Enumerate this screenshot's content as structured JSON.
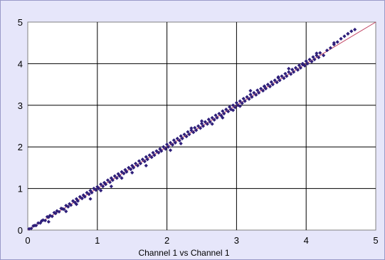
{
  "chart_data": {
    "type": "scatter",
    "title": "",
    "xlabel": "Channel 1 vs Channel 1",
    "ylabel": "",
    "xlim": [
      0,
      5
    ],
    "ylim": [
      0,
      5
    ],
    "x_ticks": [
      "0",
      "1",
      "2",
      "3",
      "4",
      "5"
    ],
    "y_ticks": [
      "0",
      "1",
      "2",
      "3",
      "4",
      "5"
    ],
    "grid": true,
    "legend": "none",
    "colors": {
      "background": "#e6e6fa",
      "plot_area": "#ffffff",
      "grid": "#000000",
      "points": "#2e1f7a",
      "trend_line": "#c04060"
    },
    "trend_line": {
      "x": [
        0,
        5
      ],
      "y": [
        0,
        5
      ]
    },
    "series": [
      {
        "marker": "diamond",
        "x": [
          0.02,
          0.05,
          0.08,
          0.1,
          0.12,
          0.15,
          0.18,
          0.2,
          0.22,
          0.25,
          0.28,
          0.3,
          0.32,
          0.35,
          0.38,
          0.4,
          0.42,
          0.45,
          0.48,
          0.5,
          0.52,
          0.55,
          0.58,
          0.6,
          0.62,
          0.65,
          0.68,
          0.7,
          0.72,
          0.75,
          0.78,
          0.8,
          0.82,
          0.85,
          0.88,
          0.9,
          0.92,
          0.95,
          0.98,
          1.0,
          1.02,
          1.05,
          1.08,
          1.1,
          1.12,
          1.15,
          1.18,
          1.2,
          1.22,
          1.25,
          1.28,
          1.3,
          1.32,
          1.35,
          1.38,
          1.4,
          1.42,
          1.45,
          1.48,
          1.5,
          1.52,
          1.55,
          1.58,
          1.6,
          1.62,
          1.65,
          1.68,
          1.7,
          1.72,
          1.75,
          1.78,
          1.8,
          1.82,
          1.85,
          1.88,
          1.9,
          1.92,
          1.95,
          1.98,
          2.0,
          2.02,
          2.05,
          2.08,
          2.1,
          2.12,
          2.15,
          2.18,
          2.2,
          2.22,
          2.25,
          2.28,
          2.3,
          2.32,
          2.35,
          2.38,
          2.4,
          2.42,
          2.45,
          2.48,
          2.5,
          2.52,
          2.55,
          2.58,
          2.6,
          2.62,
          2.65,
          2.68,
          2.7,
          2.72,
          2.75,
          2.78,
          2.8,
          2.82,
          2.85,
          2.88,
          2.9,
          2.92,
          2.95,
          2.98,
          3.0,
          3.02,
          3.05,
          3.08,
          3.1,
          3.12,
          3.15,
          3.18,
          3.2,
          3.22,
          3.25,
          3.28,
          3.3,
          3.32,
          3.35,
          3.38,
          3.4,
          3.42,
          3.45,
          3.48,
          3.5,
          3.52,
          3.55,
          3.58,
          3.6,
          3.62,
          3.65,
          3.68,
          3.7,
          3.72,
          3.75,
          3.78,
          3.8,
          3.82,
          3.85,
          3.88,
          3.9,
          3.92,
          3.95,
          3.98,
          4.0,
          4.02,
          4.05,
          4.08,
          4.1,
          4.12,
          4.15,
          4.18,
          4.2,
          4.25,
          4.3,
          4.35,
          4.4,
          4.45,
          4.5,
          4.55,
          4.6,
          4.65,
          4.7,
          0.3,
          0.55,
          0.7,
          0.9,
          1.05,
          1.2,
          1.35,
          1.5,
          1.7,
          2.05,
          2.2,
          2.35,
          2.5,
          2.65,
          2.8,
          2.95,
          3.05,
          3.2,
          3.4,
          3.6,
          3.75,
          3.95,
          4.15,
          4.4,
          4.6
        ],
        "y": [
          0.03,
          0.04,
          0.1,
          0.11,
          0.11,
          0.17,
          0.17,
          0.22,
          0.24,
          0.23,
          0.32,
          0.31,
          0.35,
          0.33,
          0.42,
          0.4,
          0.46,
          0.44,
          0.52,
          0.51,
          0.5,
          0.59,
          0.56,
          0.63,
          0.6,
          0.7,
          0.66,
          0.75,
          0.7,
          0.8,
          0.76,
          0.84,
          0.8,
          0.9,
          0.86,
          0.95,
          0.9,
          1.0,
          0.96,
          1.04,
          1.0,
          1.1,
          1.05,
          1.14,
          1.1,
          1.2,
          1.15,
          1.25,
          1.2,
          1.3,
          1.25,
          1.35,
          1.3,
          1.4,
          1.36,
          1.45,
          1.4,
          1.5,
          1.46,
          1.55,
          1.5,
          1.6,
          1.55,
          1.66,
          1.6,
          1.7,
          1.65,
          1.76,
          1.7,
          1.8,
          1.75,
          1.86,
          1.8,
          1.9,
          1.86,
          1.95,
          1.9,
          2.0,
          1.95,
          2.06,
          2.0,
          2.1,
          2.05,
          2.16,
          2.1,
          2.2,
          2.15,
          2.26,
          2.2,
          2.3,
          2.25,
          2.36,
          2.3,
          2.4,
          2.35,
          2.46,
          2.4,
          2.5,
          2.45,
          2.56,
          2.5,
          2.6,
          2.55,
          2.66,
          2.6,
          2.7,
          2.65,
          2.76,
          2.7,
          2.8,
          2.75,
          2.86,
          2.8,
          2.9,
          2.85,
          2.96,
          2.9,
          3.0,
          2.95,
          3.06,
          3.0,
          3.1,
          3.05,
          3.16,
          3.1,
          3.2,
          3.15,
          3.26,
          3.2,
          3.3,
          3.25,
          3.36,
          3.3,
          3.4,
          3.35,
          3.46,
          3.4,
          3.5,
          3.45,
          3.56,
          3.5,
          3.6,
          3.55,
          3.66,
          3.6,
          3.7,
          3.65,
          3.76,
          3.7,
          3.8,
          3.75,
          3.86,
          3.8,
          3.9,
          3.85,
          3.96,
          3.9,
          4.0,
          3.95,
          4.06,
          4.0,
          4.1,
          4.05,
          4.16,
          4.1,
          4.2,
          4.15,
          4.26,
          4.2,
          4.32,
          4.38,
          4.46,
          4.52,
          4.6,
          4.66,
          4.72,
          4.78,
          4.82,
          0.2,
          0.45,
          0.62,
          0.75,
          0.95,
          1.05,
          1.25,
          1.38,
          1.55,
          1.92,
          2.08,
          2.45,
          2.62,
          2.55,
          2.7,
          2.88,
          2.98,
          3.35,
          3.45,
          3.68,
          3.88,
          3.98,
          4.25,
          4.5,
          4.72
        ]
      }
    ]
  }
}
